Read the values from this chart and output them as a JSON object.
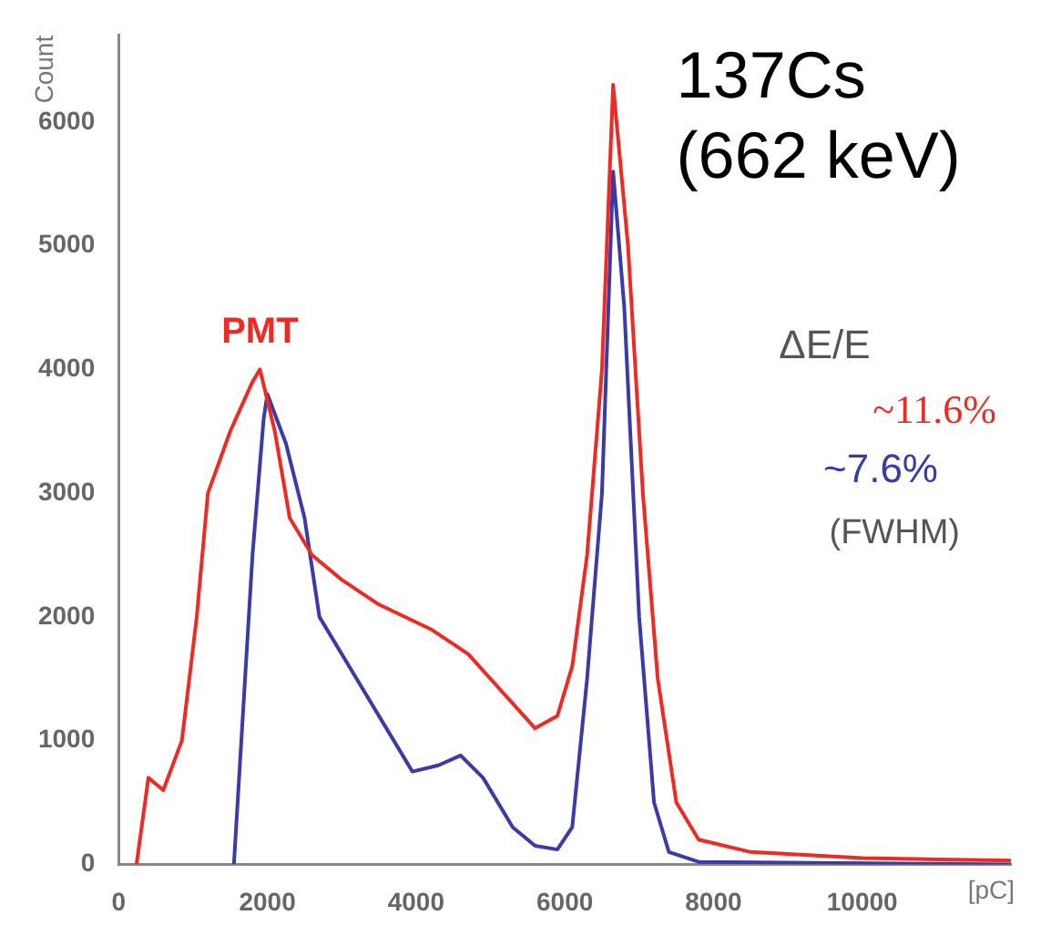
{
  "chart_data": {
    "type": "line",
    "xlabel": "[pC]",
    "ylabel": "Count",
    "xlim": [
      0,
      12000
    ],
    "ylim": [
      0,
      6700
    ],
    "xticks": [
      0,
      2000,
      4000,
      6000,
      8000,
      10000
    ],
    "yticks": [
      0,
      1000,
      2000,
      3000,
      4000,
      5000,
      6000
    ],
    "grid": false,
    "legend": false,
    "marker": "none",
    "line_style": "solid",
    "annotations": [
      "137Cs",
      "(662 keV)",
      "ΔE/E",
      "~11.6%",
      "~7.6%",
      "(FWHM)"
    ],
    "series": [
      {
        "name": "PMT",
        "color": "#ee2a24",
        "x": [
          240,
          400,
          600,
          850,
          1050,
          1200,
          1500,
          1800,
          1900,
          2100,
          2300,
          2600,
          3000,
          3500,
          4200,
          4700,
          5300,
          5600,
          5900,
          6100,
          6300,
          6500,
          6650,
          6850,
          7050,
          7250,
          7500,
          7800,
          8500,
          10000,
          12000
        ],
        "values": [
          0,
          700,
          600,
          1000,
          2000,
          3000,
          3500,
          3900,
          4000,
          3500,
          2800,
          2500,
          2300,
          2100,
          1900,
          1700,
          1300,
          1100,
          1200,
          1600,
          2500,
          4000,
          6300,
          5000,
          3000,
          1500,
          500,
          200,
          100,
          50,
          30
        ]
      },
      {
        "color": "#3a3aa8",
        "x": [
          1550,
          1650,
          1800,
          1950,
          2000,
          2250,
          2500,
          2700,
          3200,
          3700,
          3950,
          4300,
          4600,
          4900,
          5300,
          5600,
          5900,
          6100,
          6300,
          6500,
          6650,
          6800,
          7000,
          7200,
          7400,
          7800,
          12000
        ],
        "values": [
          0,
          1000,
          2500,
          3600,
          3800,
          3400,
          2800,
          2000,
          1500,
          1000,
          750,
          800,
          880,
          700,
          300,
          150,
          120,
          300,
          1500,
          3000,
          5600,
          4500,
          2000,
          500,
          100,
          20,
          0
        ]
      }
    ]
  }
}
